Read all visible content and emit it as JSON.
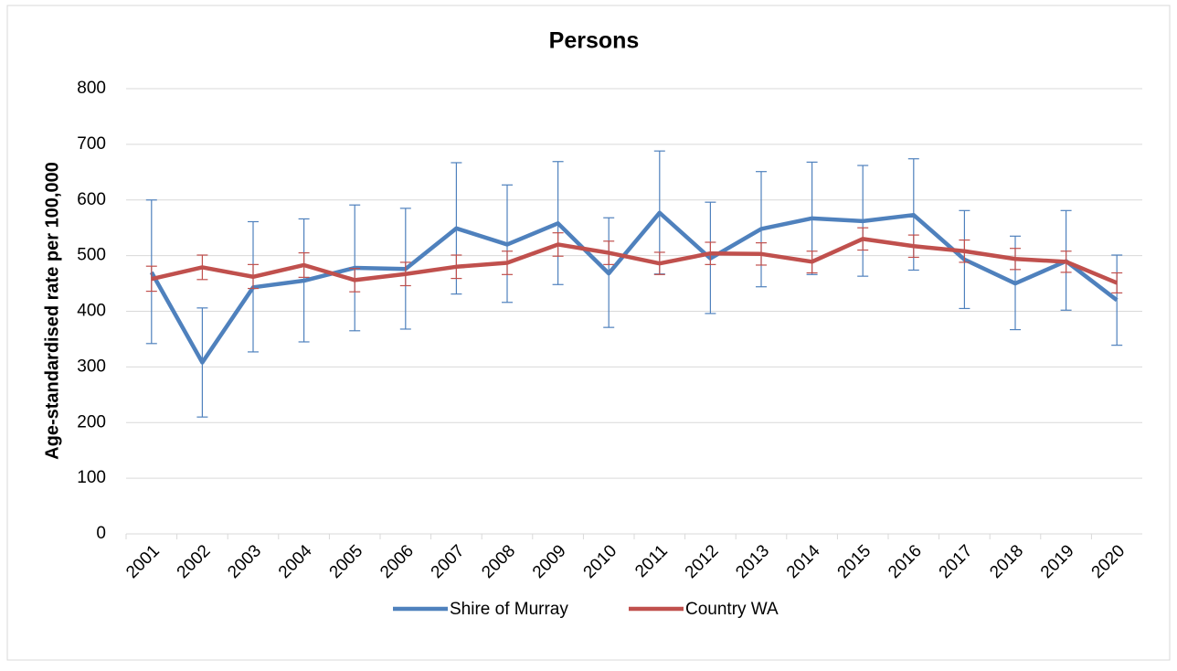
{
  "chart_data": {
    "type": "line",
    "title": "Persons",
    "y_label": "Age-standardised rate per 100,000",
    "categories": [
      "2001",
      "2002",
      "2003",
      "2004",
      "2005",
      "2006",
      "2007",
      "2008",
      "2009",
      "2010",
      "2011",
      "2012",
      "2013",
      "2014",
      "2015",
      "2016",
      "2017",
      "2018",
      "2019",
      "2020"
    ],
    "series": [
      {
        "name": "Shire of Murray",
        "color": "#4f81bd",
        "values": [
          470,
          308,
          443,
          455,
          478,
          476,
          549,
          520,
          558,
          468,
          577,
          495,
          548,
          567,
          562,
          573,
          493,
          450,
          490,
          420
        ],
        "ci_low": [
          342,
          210,
          327,
          345,
          365,
          368,
          431,
          416,
          448,
          371,
          467,
          396,
          444,
          466,
          463,
          474,
          405,
          367,
          402,
          339
        ],
        "ci_high": [
          600,
          406,
          561,
          566,
          591,
          585,
          667,
          627,
          669,
          568,
          688,
          596,
          651,
          668,
          662,
          674,
          581,
          535,
          581,
          501
        ]
      },
      {
        "name": "Country WA",
        "color": "#c0504d",
        "values": [
          458,
          479,
          462,
          483,
          456,
          467,
          480,
          487,
          520,
          505,
          486,
          504,
          503,
          489,
          530,
          517,
          508,
          494,
          489,
          451
        ],
        "ci_low": [
          436,
          457,
          441,
          461,
          435,
          446,
          459,
          466,
          499,
          484,
          466,
          484,
          483,
          469,
          510,
          497,
          488,
          475,
          470,
          433
        ],
        "ci_high": [
          481,
          501,
          484,
          505,
          477,
          488,
          501,
          508,
          541,
          526,
          506,
          524,
          523,
          508,
          550,
          537,
          528,
          513,
          508,
          469
        ]
      }
    ],
    "ylim": [
      0,
      800
    ],
    "yticks": [
      0,
      100,
      200,
      300,
      400,
      500,
      600,
      700,
      800
    ],
    "grid": true,
    "legend": "bottom"
  }
}
